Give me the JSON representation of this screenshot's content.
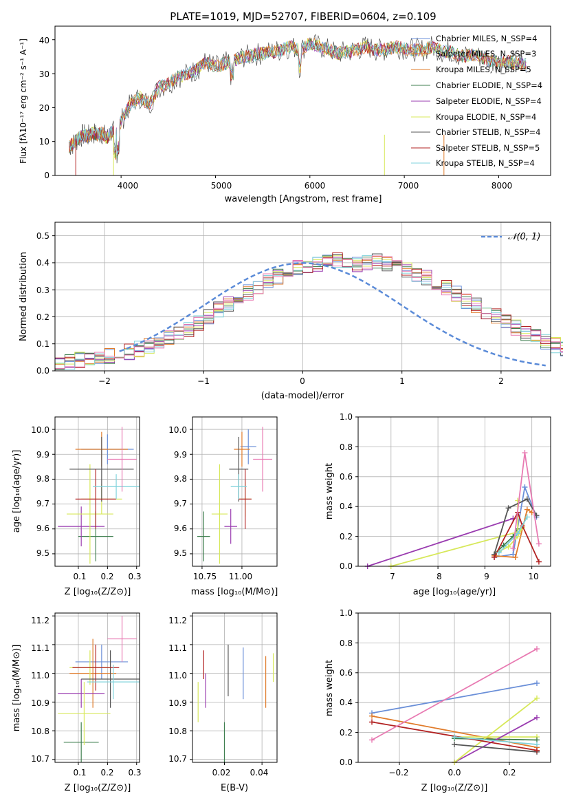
{
  "colors": {
    "chabrier_miles": "#6a8fd8",
    "salpeter_miles": "#e07b2a",
    "kroupa_miles": "#e07b2a",
    "chabrier_elodie": "#3f7f4f",
    "salpeter_elodie": "#9a3cb0",
    "kroupa_elodie": "#d7e85a",
    "chabrier_stelib": "#555555",
    "salpeter_stelib": "#b22222",
    "kroupa_stelib": "#7fd3dc",
    "pink": "#e87ab2"
  },
  "chart_data": [
    {
      "id": "spectrum",
      "type": "line",
      "title": "PLATE=1019, MJD=52707, FIBERID=0604, z=0.109",
      "xlabel": "wavelength [Angstrom, rest frame]",
      "ylabel": "Flux [fλ10⁻¹⁷ erg cm⁻² s⁻¹ A⁻¹]",
      "xlim": [
        3300,
        8550
      ],
      "ylim": [
        0,
        44
      ],
      "xticks": [
        "4000",
        "5000",
        "6000",
        "7000",
        "8000"
      ],
      "yticks": [
        "0",
        "10",
        "20",
        "30",
        "40"
      ],
      "grid": false,
      "legend_position": "top-right",
      "legend": [
        "Chabrier MILES, N_SSP=4",
        "Salpeter MILES, N_SSP=3",
        "Kroupa MILES, N_SSP=5",
        "Chabrier ELODIE, N_SSP=4",
        "Salpeter ELODIE, N_SSP=4",
        "Kroupa ELODIE, N_SSP=4",
        "Chabrier STELIB, N_SSP=4",
        "Salpeter STELIB, N_SSP=5",
        "Kroupa STELIB, N_SSP=4"
      ],
      "data_x": [
        3450,
        3500,
        3550,
        3600,
        3650,
        3700,
        3750,
        3800,
        3850,
        3900,
        3950,
        4000,
        4100,
        4200,
        4300,
        4400,
        4500,
        4600,
        4700,
        4800,
        4900,
        5000,
        5100,
        5200,
        5300,
        5400,
        5500,
        5600,
        5700,
        5800,
        5900,
        6000,
        6100,
        6200,
        6300,
        6400,
        6500,
        6600,
        6700,
        6800,
        6900,
        7000,
        7100,
        7200,
        7300,
        7400,
        7500,
        7600,
        7700,
        7800,
        7900,
        8000,
        8100,
        8200,
        8290
      ],
      "data_y": [
        8.5,
        9.5,
        11,
        12,
        11.5,
        12.5,
        12,
        12.5,
        11,
        13,
        12.5,
        16,
        21,
        23,
        21,
        26,
        27,
        29,
        30,
        31,
        33.5,
        32,
        33,
        34,
        35,
        35.5,
        36,
        36.5,
        37,
        38,
        37,
        39,
        38,
        37,
        36,
        36.5,
        37,
        38,
        37,
        37,
        38,
        37.5,
        37,
        37,
        38,
        36.5,
        36.5,
        35,
        35.5,
        35,
        34,
        33.5,
        33.5,
        33,
        32.5
      ]
    },
    {
      "id": "residuals",
      "type": "bar",
      "xlabel": "(data-model)/error",
      "ylabel": "Normed distribution",
      "xlim": [
        -2.5,
        2.5
      ],
      "ylim": [
        0,
        0.55
      ],
      "xticks": [
        "−2",
        "−1",
        "0",
        "1",
        "2"
      ],
      "yticks": [
        "0.0",
        "0.1",
        "0.2",
        "0.3",
        "0.4",
        "0.5"
      ],
      "grid": true,
      "legend_position": "top-right",
      "legend": [
        "𝒩(0, 1)"
      ],
      "bin_width": 0.1,
      "bin_start": -2.5,
      "values": [
        0.03,
        0.03,
        0.04,
        0.045,
        0.05,
        0.055,
        0.065,
        0.07,
        0.08,
        0.09,
        0.105,
        0.12,
        0.14,
        0.155,
        0.175,
        0.2,
        0.225,
        0.245,
        0.265,
        0.29,
        0.31,
        0.33,
        0.35,
        0.365,
        0.38,
        0.39,
        0.395,
        0.405,
        0.41,
        0.4,
        0.395,
        0.4,
        0.405,
        0.395,
        0.385,
        0.37,
        0.355,
        0.345,
        0.33,
        0.305,
        0.285,
        0.26,
        0.24,
        0.22,
        0.2,
        0.18,
        0.16,
        0.14,
        0.125,
        0.11,
        0.095,
        0.08,
        0.07,
        0.06,
        0.05,
        0.045,
        0.04,
        0.035,
        0.03,
        0.03
      ]
    },
    {
      "id": "age_vs_Z",
      "type": "scatter",
      "xlabel": "Z [log₁₀(Z/Z⊙)]",
      "ylabel": "age  [log₁₀(age/yr)]",
      "xlim": [
        0.02,
        0.31
      ],
      "ylim": [
        9.45,
        10.05
      ],
      "xticks": [
        "0.1",
        "0.2",
        "0.3"
      ],
      "yticks": [
        "9.5",
        "9.6",
        "9.7",
        "9.8",
        "9.9",
        "10.0"
      ],
      "grid": true,
      "points": [
        {
          "x": 0.2,
          "y": 9.92,
          "xerr": 0.09,
          "yerr": 0.06
        },
        {
          "x": 0.18,
          "y": 9.92,
          "xerr": 0.09,
          "yerr": 0.07
        },
        {
          "x": 0.18,
          "y": 9.72,
          "xerr": 0.07,
          "yerr": 0.06
        },
        {
          "x": 0.16,
          "y": 9.57,
          "xerr": 0.06,
          "yerr": 0.1
        },
        {
          "x": 0.11,
          "y": 9.61,
          "xerr": 0.08,
          "yerr": 0.08
        },
        {
          "x": 0.14,
          "y": 9.66,
          "xerr": 0.08,
          "yerr": 0.2
        },
        {
          "x": 0.18,
          "y": 9.84,
          "xerr": 0.11,
          "yerr": 0.13
        },
        {
          "x": 0.16,
          "y": 9.72,
          "xerr": 0.07,
          "yerr": 0.12
        },
        {
          "x": 0.23,
          "y": 9.77,
          "xerr": 0.08,
          "yerr": 0.05
        },
        {
          "x": 0.25,
          "y": 9.88,
          "xerr": 0.05,
          "yerr": 0.13
        }
      ]
    },
    {
      "id": "age_vs_mass",
      "type": "scatter",
      "xlabel": "mass [log₁₀(M/M⊙)]",
      "ylabel": "",
      "xlim": [
        10.69,
        11.22
      ],
      "ylim": [
        9.45,
        10.05
      ],
      "xticks": [
        "10.75",
        "11.00"
      ],
      "yticks": [
        "9.5",
        "9.6",
        "9.7",
        "9.8",
        "9.9",
        "10.0"
      ],
      "grid": true,
      "points": [
        {
          "x": 11.04,
          "y": 9.93,
          "xerr": 0.05,
          "yerr": 0.07
        },
        {
          "x": 11.0,
          "y": 9.92,
          "xerr": 0.05,
          "yerr": 0.07
        },
        {
          "x": 11.02,
          "y": 9.72,
          "xerr": 0.04,
          "yerr": 0.07
        },
        {
          "x": 10.76,
          "y": 9.57,
          "xerr": 0.04,
          "yerr": 0.1
        },
        {
          "x": 10.93,
          "y": 9.61,
          "xerr": 0.04,
          "yerr": 0.07
        },
        {
          "x": 10.86,
          "y": 9.66,
          "xerr": 0.05,
          "yerr": 0.2
        },
        {
          "x": 10.98,
          "y": 9.84,
          "xerr": 0.06,
          "yerr": 0.13
        },
        {
          "x": 11.02,
          "y": 9.72,
          "xerr": 0.04,
          "yerr": 0.12
        },
        {
          "x": 10.98,
          "y": 9.77,
          "xerr": 0.05,
          "yerr": 0.05
        },
        {
          "x": 11.13,
          "y": 9.88,
          "xerr": 0.06,
          "yerr": 0.13
        }
      ]
    },
    {
      "id": "weight_vs_age",
      "type": "line",
      "xlabel": "age  [log₁₀(age/yr)]",
      "ylabel": "mass weight",
      "xlim": [
        6.3,
        10.4
      ],
      "ylim": [
        0,
        1
      ],
      "xticks": [
        "7",
        "8",
        "9",
        "10"
      ],
      "yticks": [
        "0.0",
        "0.2",
        "0.4",
        "0.6",
        "0.8",
        "1.0"
      ],
      "grid": true,
      "series": [
        {
          "x": [
            9.2,
            9.6,
            9.85,
            10.1
          ],
          "y": [
            0.06,
            0.08,
            0.53,
            0.33
          ]
        },
        {
          "x": [
            9.2,
            9.65,
            9.9,
            10.0
          ],
          "y": [
            0.07,
            0.06,
            0.38,
            0.36
          ]
        },
        {
          "x": [
            9.3,
            9.5,
            9.7,
            9.8
          ],
          "y": [
            0.1,
            0.13,
            0.2,
            0.26
          ]
        },
        {
          "x": [
            9.2,
            9.4,
            9.6,
            9.7
          ],
          "y": [
            0.08,
            0.14,
            0.2,
            0.25
          ]
        },
        {
          "x": [
            6.5,
            9.6
          ],
          "y": [
            0.0,
            0.32
          ]
        },
        {
          "x": [
            7.0,
            9.7,
            9.7
          ],
          "y": [
            0.0,
            0.23,
            0.44
          ]
        },
        {
          "x": [
            9.2,
            9.5,
            9.9,
            10.1
          ],
          "y": [
            0.08,
            0.39,
            0.45,
            0.34
          ]
        },
        {
          "x": [
            9.2,
            9.7,
            9.8,
            10.15
          ],
          "y": [
            0.06,
            0.36,
            0.27,
            0.03
          ]
        },
        {
          "x": [
            9.3,
            9.7,
            9.9
          ],
          "y": [
            0.09,
            0.22,
            0.33
          ]
        },
        {
          "x": [
            9.6,
            9.85,
            10.15
          ],
          "y": [
            0.12,
            0.76,
            0.15
          ]
        }
      ]
    },
    {
      "id": "mass_vs_Z",
      "type": "scatter",
      "xlabel": "Z [log₁₀(Z/Z⊙)]",
      "ylabel": "mass [log₁₀(M/M⊙)]",
      "xlim": [
        0.02,
        0.31
      ],
      "ylim": [
        10.69,
        11.21
      ],
      "xticks": [
        "0.1",
        "0.2",
        "0.3"
      ],
      "yticks": [
        "10.7",
        "10.8",
        "10.9",
        "11.0",
        "11.1",
        "11.2"
      ],
      "grid": true,
      "points": [
        {
          "x": 0.18,
          "y": 11.04,
          "xerr": 0.09,
          "yerr": 0.06
        },
        {
          "x": 0.15,
          "y": 11.0,
          "xerr": 0.08,
          "yerr": 0.12
        },
        {
          "x": 0.14,
          "y": 11.02,
          "xerr": 0.07,
          "yerr": 0.06
        },
        {
          "x": 0.11,
          "y": 10.76,
          "xerr": 0.06,
          "yerr": 0.07
        },
        {
          "x": 0.11,
          "y": 10.93,
          "xerr": 0.08,
          "yerr": 0.05
        },
        {
          "x": 0.12,
          "y": 10.86,
          "xerr": 0.09,
          "yerr": 0.11
        },
        {
          "x": 0.21,
          "y": 10.98,
          "xerr": 0.1,
          "yerr": 0.1
        },
        {
          "x": 0.16,
          "y": 11.02,
          "xerr": 0.08,
          "yerr": 0.08
        },
        {
          "x": 0.22,
          "y": 10.97,
          "xerr": 0.09,
          "yerr": 0.06
        },
        {
          "x": 0.25,
          "y": 11.12,
          "xerr": 0.05,
          "yerr": 0.08
        }
      ]
    },
    {
      "id": "mass_vs_ebv",
      "type": "scatter",
      "xlabel": "E(B-V)",
      "ylabel": "",
      "xlim": [
        0.003,
        0.048
      ],
      "ylim": [
        10.69,
        11.21
      ],
      "xticks": [
        "0.02",
        "0.04"
      ],
      "yticks": [
        "10.7",
        "10.8",
        "10.9",
        "11.0",
        "11.1",
        "11.2"
      ],
      "grid": true,
      "points": [
        {
          "x": 0.03,
          "y": 11.0,
          "xerr": 0,
          "yerr": 0.09
        },
        {
          "x": 0.042,
          "y": 10.97,
          "xerr": 0,
          "yerr": 0.09
        },
        {
          "x": 0.046,
          "y": 11.02,
          "xerr": 0,
          "yerr": 0.05
        },
        {
          "x": 0.02,
          "y": 10.76,
          "xerr": 0,
          "yerr": 0.07
        },
        {
          "x": 0.01,
          "y": 10.94,
          "xerr": 0,
          "yerr": 0.06
        },
        {
          "x": 0.006,
          "y": 10.9,
          "xerr": 0,
          "yerr": 0.07
        },
        {
          "x": 0.022,
          "y": 11.01,
          "xerr": 0,
          "yerr": 0.09
        },
        {
          "x": 0.009,
          "y": 11.03,
          "xerr": 0,
          "yerr": 0.05
        }
      ]
    },
    {
      "id": "weight_vs_Z",
      "type": "line",
      "xlabel": "Z [log₁₀(Z/Z⊙)]",
      "ylabel": "mass weight",
      "xlim": [
        -0.35,
        0.35
      ],
      "ylim": [
        0,
        1
      ],
      "xticks": [
        "−0.2",
        "0.0",
        "0.2"
      ],
      "yticks": [
        "0.0",
        "0.2",
        "0.4",
        "0.6",
        "0.8",
        "1.0"
      ],
      "grid": true,
      "series": [
        {
          "x": [
            -0.3,
            0.3
          ],
          "y": [
            0.33,
            0.53
          ]
        },
        {
          "x": [
            -0.3,
            0.3
          ],
          "y": [
            0.31,
            0.1
          ]
        },
        {
          "x": [
            0.0,
            0.3
          ],
          "y": [
            0.17,
            0.17
          ]
        },
        {
          "x": [
            0.0,
            0.3
          ],
          "y": [
            0.16,
            0.15
          ]
        },
        {
          "x": [
            0.0,
            0.3
          ],
          "y": [
            0.0,
            0.3
          ]
        },
        {
          "x": [
            0.0,
            0.3
          ],
          "y": [
            0.0,
            0.43
          ]
        },
        {
          "x": [
            0.0,
            0.3
          ],
          "y": [
            0.12,
            0.07
          ]
        },
        {
          "x": [
            -0.3,
            0.3
          ],
          "y": [
            0.27,
            0.08
          ]
        },
        {
          "x": [
            0.0,
            0.3
          ],
          "y": [
            0.17,
            0.12
          ]
        },
        {
          "x": [
            -0.3,
            0.3
          ],
          "y": [
            0.15,
            0.76
          ]
        }
      ]
    }
  ]
}
